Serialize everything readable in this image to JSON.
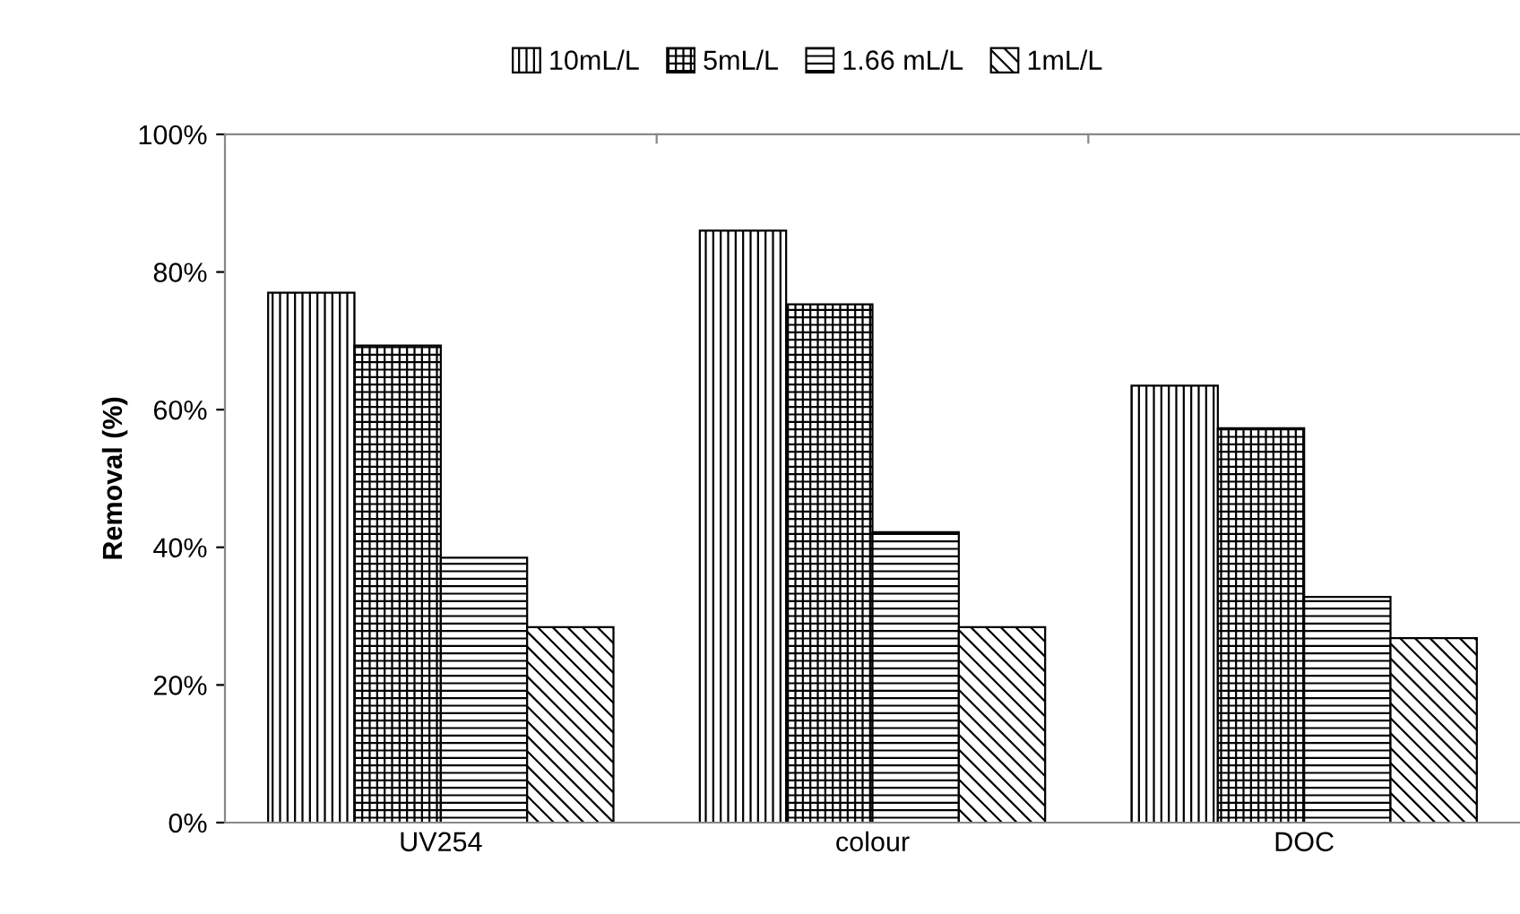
{
  "chart_data": {
    "type": "bar",
    "ylabel": "Removal (%)",
    "categories": [
      "UV254",
      "colour",
      "DOC"
    ],
    "series": [
      {
        "name": "10mL/L",
        "color": "#000000",
        "values": [
          77,
          86,
          63.5
        ]
      },
      {
        "name": "5mL/L",
        "color": "#000000",
        "values": [
          69.3,
          75.3,
          57.3
        ]
      },
      {
        "name": "1.66 mL/L",
        "color": "#000000",
        "values": [
          38.5,
          42.2,
          32.8
        ]
      },
      {
        "name": "1mL/L",
        "color": "#000000",
        "values": [
          28.4,
          28.4,
          26.8
        ]
      }
    ],
    "ylim": [
      0,
      100
    ],
    "yticks": [
      {
        "value": 0,
        "label": "0%"
      },
      {
        "value": 20,
        "label": "20%"
      },
      {
        "value": 40,
        "label": "40%"
      },
      {
        "value": 60,
        "label": "60%"
      },
      {
        "value": 80,
        "label": "80%"
      },
      {
        "value": 100,
        "label": "100%"
      }
    ],
    "grid": false,
    "legend": "top"
  }
}
